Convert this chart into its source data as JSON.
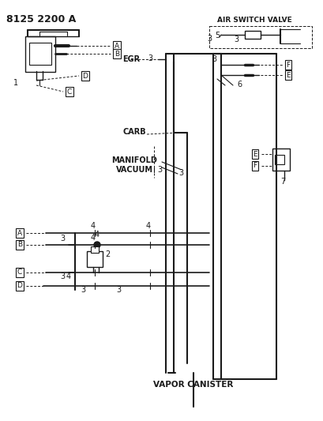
{
  "bg_color": "#ffffff",
  "line_color": "#1a1a1a",
  "part_num": "8125 2200 A",
  "labels": {
    "air_switch_valve": "AIR SWITCH VALVE",
    "egr": "EGR",
    "carb": "CARB",
    "manifold_vacuum": "MANIFOLD\nVACUUM",
    "vapor_canister": "VAPOR CANISTER"
  }
}
